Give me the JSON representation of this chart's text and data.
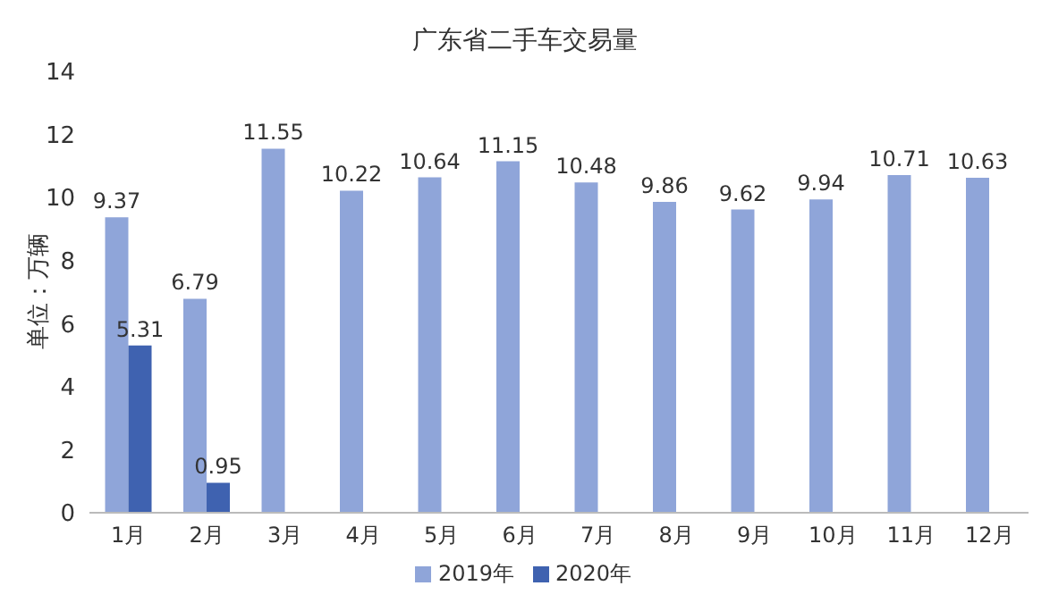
{
  "chart_data": {
    "type": "bar",
    "title": "广东省二手车交易量",
    "ylabel": "单位：万辆",
    "categories": [
      "1月",
      "2月",
      "3月",
      "4月",
      "5月",
      "6月",
      "7月",
      "8月",
      "9月",
      "10月",
      "11月",
      "12月"
    ],
    "series": [
      {
        "name": "2019年",
        "color": "#8fa5d9",
        "values": [
          9.37,
          6.79,
          11.55,
          10.22,
          10.64,
          11.15,
          10.48,
          9.86,
          9.62,
          9.94,
          10.71,
          10.63
        ]
      },
      {
        "name": "2020年",
        "color": "#3f62b0",
        "values": [
          5.31,
          0.95,
          null,
          null,
          null,
          null,
          null,
          null,
          null,
          null,
          null,
          null
        ]
      }
    ],
    "ylim": [
      0,
      14
    ],
    "yticks": [
      0,
      2,
      4,
      6,
      8,
      10,
      12,
      14
    ],
    "grid": false,
    "legend": "bottom",
    "data_labels": true
  }
}
